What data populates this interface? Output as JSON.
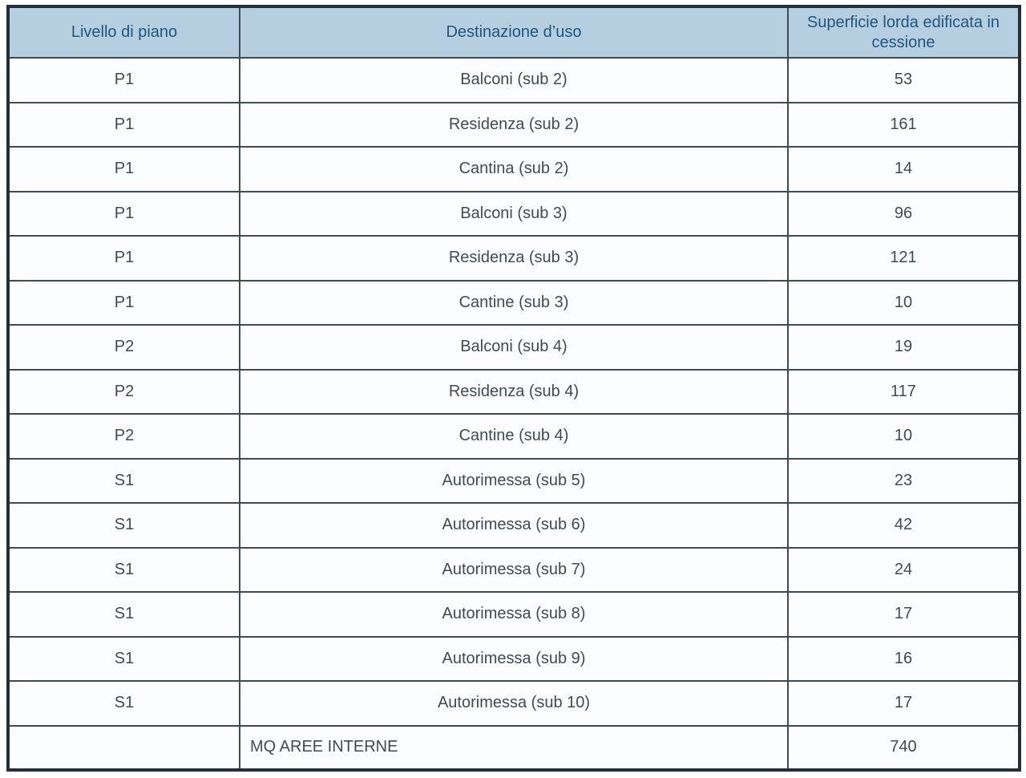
{
  "table": {
    "columns": [
      {
        "label": "Livello di piano"
      },
      {
        "label": "Destinazione d’uso"
      },
      {
        "label": "Superficie lorda edificata in cessione"
      }
    ],
    "rows": [
      {
        "level": "P1",
        "use": "Balconi  (sub 2)",
        "area": "53"
      },
      {
        "level": "P1",
        "use": "Residenza (sub 2)",
        "area": "161"
      },
      {
        "level": "P1",
        "use": "Cantina (sub 2)",
        "area": "14"
      },
      {
        "level": "P1",
        "use": "Balconi (sub 3)",
        "area": "96"
      },
      {
        "level": "P1",
        "use": "Residenza (sub 3)",
        "area": "121"
      },
      {
        "level": "P1",
        "use": "Cantine (sub 3)",
        "area": "10"
      },
      {
        "level": "P2",
        "use": "Balconi (sub 4)",
        "area": "19"
      },
      {
        "level": "P2",
        "use": "Residenza (sub 4)",
        "area": "117"
      },
      {
        "level": "P2",
        "use": "Cantine (sub 4)",
        "area": "10"
      },
      {
        "level": "S1",
        "use": "Autorimessa (sub 5)",
        "area": "23"
      },
      {
        "level": "S1",
        "use": "Autorimessa (sub 6)",
        "area": "42"
      },
      {
        "level": "S1",
        "use": "Autorimessa (sub 7)",
        "area": "24"
      },
      {
        "level": "S1",
        "use": "Autorimessa (sub 8)",
        "area": "17"
      },
      {
        "level": "S1",
        "use": "Autorimessa (sub 9)",
        "area": "16"
      },
      {
        "level": "S1",
        "use": "Autorimessa (sub 10)",
        "area": "17"
      }
    ],
    "footer": {
      "level": "",
      "use": "MQ AREE INTERNE",
      "area": "740"
    }
  },
  "colors": {
    "header_bg": "#b6cfe0",
    "header_text": "#1e567f",
    "body_text": "#3f4a54",
    "border_inner": "#3e4a55",
    "border_outer": "#242e37",
    "cell_bg": "#fcfdfe"
  }
}
